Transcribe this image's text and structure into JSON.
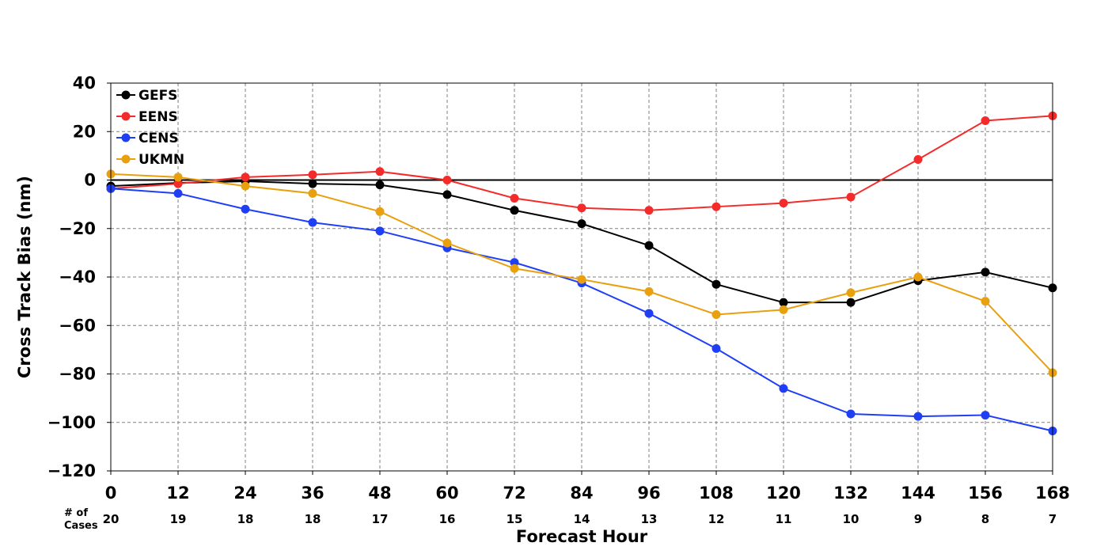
{
  "chart_data": {
    "type": "line",
    "title": "",
    "xlabel": "Forecast Hour",
    "ylabel": "Cross Track Bias (nm)",
    "xlim": [
      0,
      168
    ],
    "ylim": [
      -120,
      40
    ],
    "x_ticks": [
      0,
      12,
      24,
      36,
      48,
      60,
      72,
      84,
      96,
      108,
      120,
      132,
      144,
      156,
      168
    ],
    "y_ticks": [
      40,
      20,
      0,
      -20,
      -40,
      -60,
      -80,
      -100,
      -120
    ],
    "y_tick_labels": [
      "40",
      "20",
      "0",
      "−20",
      "−40",
      "−60",
      "−80",
      "−100",
      "−120"
    ],
    "grid": true,
    "zero_line": true,
    "legend_position": "top-left",
    "cases_label": [
      "# of",
      "Cases"
    ],
    "cases": [
      20,
      19,
      18,
      18,
      17,
      16,
      15,
      14,
      13,
      12,
      11,
      10,
      9,
      8,
      7
    ],
    "x": [
      0,
      12,
      24,
      36,
      48,
      60,
      72,
      84,
      96,
      108,
      120,
      132,
      144,
      156,
      168
    ],
    "series": [
      {
        "name": "GEFS",
        "color": "#000000",
        "values": [
          -2.5,
          -1.2,
          -0.5,
          -1.5,
          -2.0,
          -6.0,
          -12.5,
          -18.0,
          -27.0,
          -43.0,
          -50.5,
          -50.5,
          -41.5,
          -38.0,
          -44.5
        ]
      },
      {
        "name": "EENS",
        "color": "#f42b2b",
        "values": [
          -3.5,
          -1.5,
          1.2,
          2.2,
          3.5,
          0.0,
          -7.5,
          -11.5,
          -12.5,
          -11.0,
          -9.5,
          -7.0,
          8.5,
          24.5,
          26.5
        ]
      },
      {
        "name": "CENS",
        "color": "#1f3ff5",
        "values": [
          -3.5,
          -5.5,
          -12.0,
          -17.5,
          -21.0,
          -28.0,
          -34.0,
          -42.5,
          -55.0,
          -69.5,
          -86.0,
          -96.5,
          -97.5,
          -97.0,
          -103.5
        ]
      },
      {
        "name": "UKMN",
        "color": "#e8a00f",
        "values": [
          2.5,
          1.2,
          -2.5,
          -5.5,
          -13.0,
          -26.0,
          -36.5,
          -41.0,
          -46.0,
          -55.5,
          -53.5,
          -46.5,
          -40.0,
          -50.0,
          -79.5
        ]
      }
    ]
  }
}
